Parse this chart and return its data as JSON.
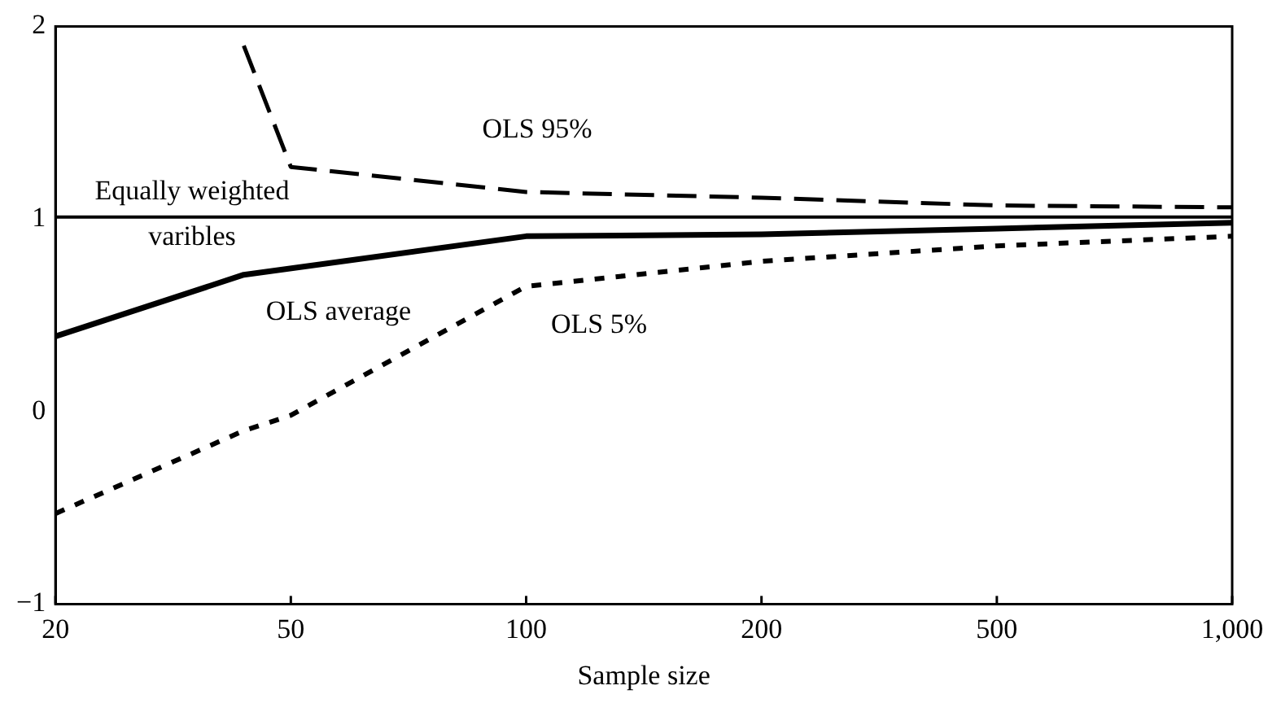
{
  "chart_data": {
    "type": "line",
    "xlabel": "Sample size",
    "categories": [
      "20",
      null,
      null,
      null,
      null,
      "50",
      null,
      null,
      null,
      null,
      "100",
      null,
      null,
      null,
      null,
      "200",
      null,
      null,
      null,
      null,
      "500",
      null,
      null,
      null,
      null,
      "1,000"
    ],
    "ylim": [
      -1,
      2
    ],
    "yticks": [
      {
        "value": -1,
        "label": "−1"
      },
      0,
      1,
      2
    ],
    "grid": false,
    "legend": false,
    "marker": "none",
    "series": [
      {
        "name": "Equally weighted varibles",
        "color": "#000000",
        "line_style": "solid",
        "values": [
          1.01,
          null,
          null,
          null,
          null,
          null,
          null,
          null,
          null,
          null,
          null,
          null,
          null,
          null,
          null,
          null,
          null,
          null,
          null,
          null,
          null,
          null,
          null,
          null,
          null,
          1.01
        ]
      },
      {
        "name": "OLS 95%",
        "color": "#000000",
        "line_style": "dashed",
        "values": [
          null,
          null,
          null,
          null,
          1.9,
          1.27,
          null,
          null,
          null,
          null,
          1.14,
          null,
          null,
          null,
          null,
          1.11,
          null,
          null,
          null,
          null,
          1.07,
          null,
          null,
          null,
          null,
          1.06
        ]
      },
      {
        "name": "OLS average",
        "color": "#000000",
        "line_style": "solid",
        "values": [
          0.39,
          null,
          null,
          null,
          0.71,
          null,
          null,
          null,
          null,
          null,
          0.91,
          null,
          null,
          null,
          null,
          0.92,
          null,
          null,
          null,
          null,
          0.95,
          null,
          null,
          null,
          null,
          0.98
        ]
      },
      {
        "name": "OLS 5%",
        "color": "#000000",
        "line_style": "dotted",
        "values": [
          -0.53,
          null,
          null,
          null,
          -0.1,
          -0.02,
          null,
          null,
          null,
          null,
          0.65,
          null,
          null,
          null,
          null,
          0.78,
          null,
          null,
          null,
          null,
          0.86,
          null,
          null,
          null,
          null,
          0.91
        ]
      }
    ]
  }
}
